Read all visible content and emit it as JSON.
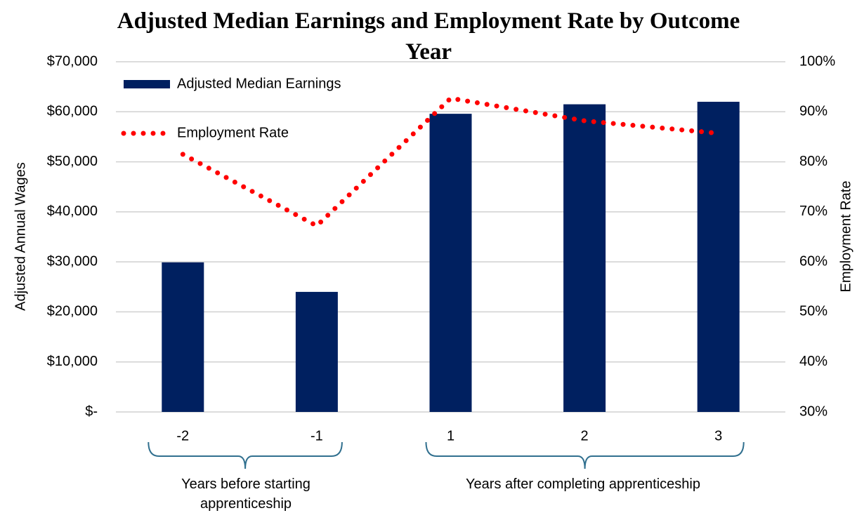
{
  "chart_data": {
    "type": "bar-line",
    "title": "Adjusted Median Earnings and Employment Rate by Outcome Year",
    "ylabel": "Adjusted Annual Wages",
    "y2label": "Employment Rate",
    "categories": [
      "-2",
      "-1",
      "1",
      "2",
      "3"
    ],
    "series": [
      {
        "name": "Adjusted Median Earnings",
        "type": "bar",
        "color": "#002060",
        "values": [
          29900,
          24000,
          59600,
          61500,
          62000
        ]
      },
      {
        "name": "Employment Rate",
        "type": "line",
        "axis": "y2",
        "color": "#ff0000",
        "values": [
          81.5,
          67.2,
          92.7,
          88.2,
          85.7
        ]
      }
    ],
    "ylim": [
      0,
      70000
    ],
    "yticks": [
      {
        "value": 0,
        "label": "$-"
      },
      {
        "value": 10000,
        "label": "$10,000"
      },
      {
        "value": 20000,
        "label": "$20,000"
      },
      {
        "value": 30000,
        "label": "$30,000"
      },
      {
        "value": 40000,
        "label": "$40,000"
      },
      {
        "value": 50000,
        "label": "$50,000"
      },
      {
        "value": 60000,
        "label": "$60,000"
      },
      {
        "value": 70000,
        "label": "$70,000"
      }
    ],
    "y2lim": [
      30,
      100
    ],
    "y2ticks": [
      {
        "value": 30,
        "label": "30%"
      },
      {
        "value": 40,
        "label": "40%"
      },
      {
        "value": 50,
        "label": "50%"
      },
      {
        "value": 60,
        "label": "60%"
      },
      {
        "value": 70,
        "label": "70%"
      },
      {
        "value": 80,
        "label": "80%"
      },
      {
        "value": 90,
        "label": "90%"
      },
      {
        "value": 100,
        "label": "100%"
      }
    ],
    "grid": true,
    "legend": "upper left",
    "annotations": [
      "Years before starting apprenticeship",
      "Years after completing apprenticeship"
    ]
  }
}
